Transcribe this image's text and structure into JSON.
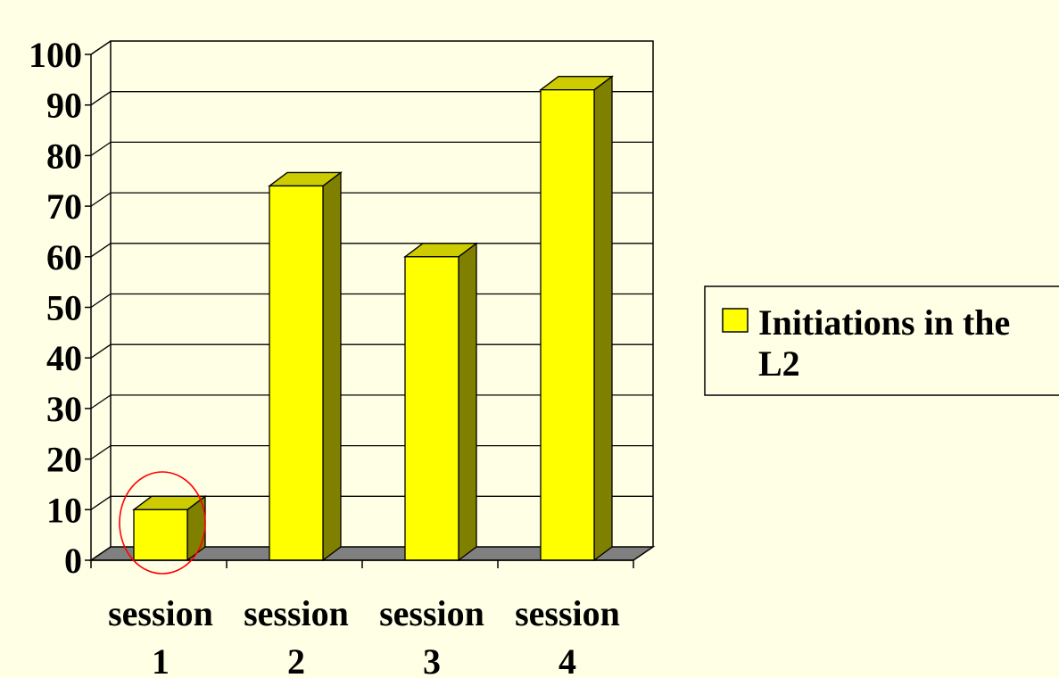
{
  "chart_data": {
    "type": "bar",
    "style": "3d-column",
    "categories": [
      "session 1",
      "session 2",
      "session 3",
      "session 4"
    ],
    "category_lines": [
      [
        "session",
        "1"
      ],
      [
        "session",
        "2"
      ],
      [
        "session",
        "3"
      ],
      [
        "session",
        "4"
      ]
    ],
    "series": [
      {
        "name": "Initiations in the L2",
        "values": [
          10,
          74,
          60,
          93
        ]
      }
    ],
    "legend_lines": [
      "Initiations in the",
      "L2"
    ],
    "ylim": [
      0,
      100
    ],
    "yticks": [
      0,
      10,
      20,
      30,
      40,
      50,
      60,
      70,
      80,
      90,
      100
    ],
    "grid": true,
    "legend_position": "right",
    "highlight_category": "session 1",
    "colors": {
      "background": "#FFFFE6",
      "bar_front": "#FFFF00",
      "bar_top": "#CCCC00",
      "bar_side": "#808000",
      "floor": "#808080",
      "highlight_ring": "#FF0000",
      "gridline": "#000000"
    }
  }
}
